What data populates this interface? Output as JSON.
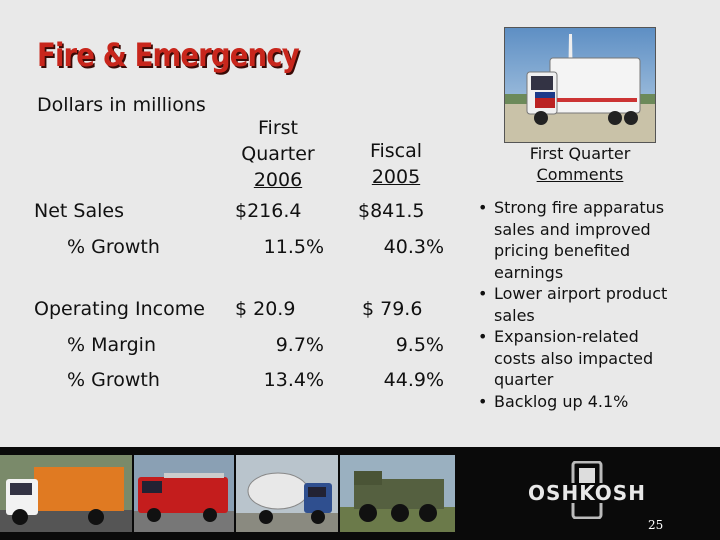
{
  "slide": {
    "title": "Fire & Emergency",
    "subtitle": "Dollars in millions",
    "page_number": "25"
  },
  "table": {
    "col1_header": [
      "First",
      "Quarter",
      "2006"
    ],
    "col2_header": [
      "Fiscal",
      "2005"
    ],
    "rows": [
      {
        "label": "Net Sales",
        "v1": "$216.4",
        "v2": "$841.5"
      },
      {
        "label": "% Growth",
        "v1": "11.5%",
        "v2": "40.3%"
      },
      {
        "label": "Operating Income",
        "v1": "$ 20.9",
        "v2": "$ 79.6"
      },
      {
        "label": "% Margin",
        "v1": "9.7%",
        "v2": "9.5%"
      },
      {
        "label": "% Growth",
        "v1": "13.4%",
        "v2": "44.9%"
      }
    ]
  },
  "comments": {
    "header": [
      "First Quarter",
      "Comments"
    ],
    "bullets": [
      [
        "Strong fire apparatus",
        "sales and improved",
        "pricing benefited",
        "earnings"
      ],
      [
        "Lower airport product",
        "sales"
      ],
      [
        "Expansion-related",
        "costs also impacted",
        "quarter"
      ],
      [
        "Backlog up 4.1%"
      ]
    ],
    "bullet_glyph": "•"
  },
  "logo": {
    "text": "OSHKOSH"
  },
  "colors": {
    "title_red": "#c8261c",
    "background": "#e9e9e9",
    "footer_strip": "#0a0a0a"
  },
  "icons": {
    "photo_top": "emergency-vehicle-photo",
    "footer_photos": [
      "garbage-truck-photo",
      "fire-truck-photo",
      "cement-mixer-truck-photo",
      "military-truck-photo"
    ],
    "logo": "oshkosh-logo"
  }
}
